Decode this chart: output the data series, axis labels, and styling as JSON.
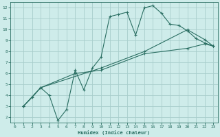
{
  "bg_color": "#ceecea",
  "grid_color": "#a8cecc",
  "line_color": "#2a6e62",
  "xlabel": "Humidex (Indice chaleur)",
  "xlim": [
    -0.5,
    23.5
  ],
  "ylim": [
    1.5,
    12.5
  ],
  "xticks": [
    0,
    1,
    2,
    3,
    4,
    5,
    6,
    7,
    8,
    9,
    10,
    11,
    12,
    13,
    14,
    15,
    16,
    17,
    18,
    19,
    20,
    21,
    22,
    23
  ],
  "yticks": [
    2,
    3,
    4,
    5,
    6,
    7,
    8,
    9,
    10,
    11,
    12
  ],
  "line1_x": [
    1,
    2,
    3,
    4,
    5,
    6,
    7,
    8,
    9,
    10,
    11,
    12,
    13,
    14,
    15,
    16,
    17,
    18,
    19,
    20,
    21,
    22,
    23
  ],
  "line1_y": [
    3.0,
    3.8,
    4.7,
    4.0,
    1.7,
    2.7,
    6.3,
    4.5,
    6.5,
    7.5,
    11.2,
    11.4,
    11.6,
    9.5,
    12.0,
    12.2,
    11.5,
    10.5,
    10.4,
    9.9,
    9.2,
    8.8,
    8.5
  ],
  "line2_x": [
    1,
    3,
    10,
    15,
    20,
    22,
    23
  ],
  "line2_y": [
    3.0,
    4.7,
    6.5,
    8.0,
    10.0,
    9.1,
    8.5
  ],
  "line3_x": [
    1,
    3,
    7,
    10,
    15,
    20,
    22,
    23
  ],
  "line3_y": [
    3.0,
    4.7,
    6.0,
    6.3,
    7.8,
    8.3,
    8.7,
    8.5
  ],
  "figsize": [
    3.2,
    2.0
  ],
  "dpi": 100
}
